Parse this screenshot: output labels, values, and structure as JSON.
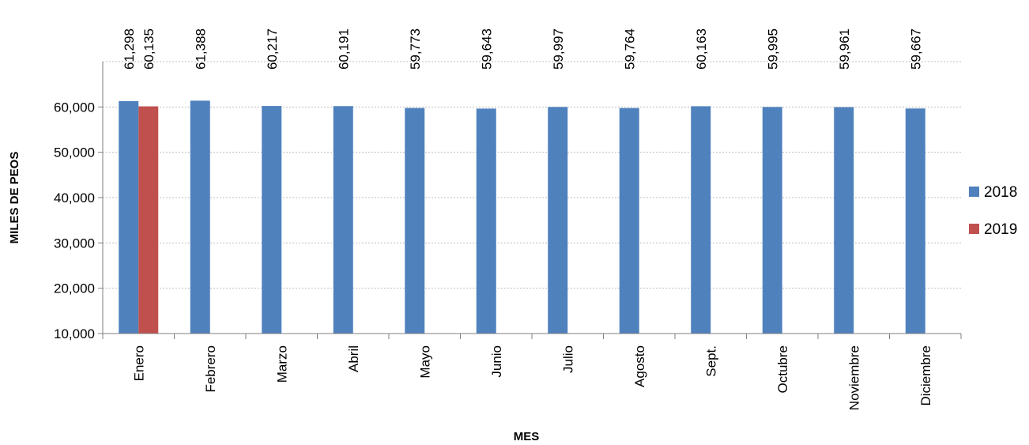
{
  "chart_data": {
    "type": "bar",
    "categories": [
      "Enero",
      "Febrero",
      "Marzo",
      "Abril",
      "Mayo",
      "Junio",
      "Julio",
      "Agosto",
      "Sept.",
      "Octubre",
      "Noviembre",
      "Diciembre"
    ],
    "series": [
      {
        "name": "2018",
        "color": "#4F81BD",
        "values": [
          61298,
          61388,
          60217,
          60191,
          59773,
          59643,
          59997,
          59764,
          60163,
          59995,
          59961,
          59667
        ]
      },
      {
        "name": "2019",
        "color": "#C0504D",
        "values": [
          60135,
          null,
          null,
          null,
          null,
          null,
          null,
          null,
          null,
          null,
          null,
          null
        ]
      }
    ],
    "data_labels": {
      "2018": [
        "61,298",
        "61,388",
        "60,217",
        "60,191",
        "59,773",
        "59,643",
        "59,997",
        "59,764",
        "60,163",
        "59,995",
        "59,961",
        "59,667"
      ],
      "2019": [
        "60,135",
        null,
        null,
        null,
        null,
        null,
        null,
        null,
        null,
        null,
        null,
        null
      ]
    },
    "xlabel": "MES",
    "ylabel": "MILES DE PEOS",
    "ylim": [
      10000,
      70000
    ],
    "yticks": [
      10000,
      20000,
      30000,
      40000,
      50000,
      60000
    ],
    "ytick_labels": [
      "10,000",
      "20,000",
      "30,000",
      "40,000",
      "50,000",
      "60,000"
    ],
    "grid": true,
    "legend_position": "right"
  }
}
